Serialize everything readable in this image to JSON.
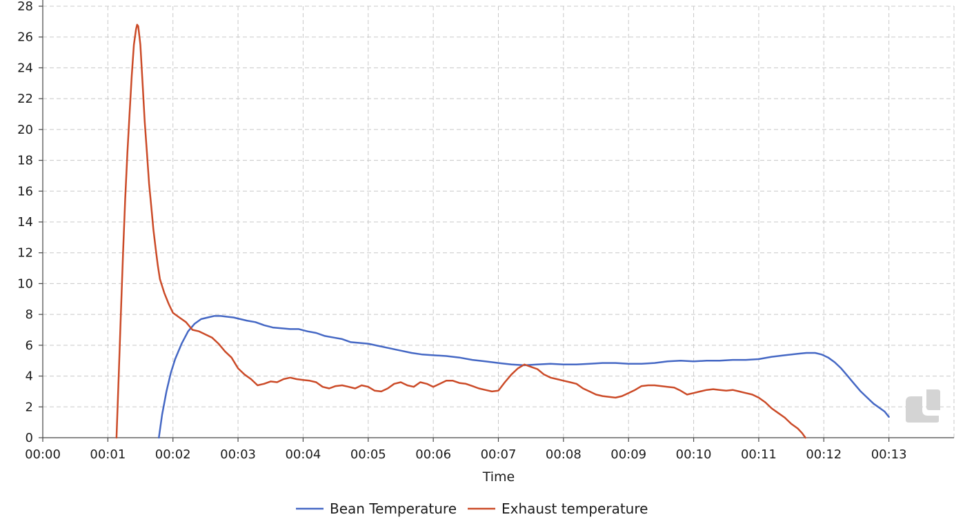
{
  "chart_data": {
    "type": "line",
    "title": "",
    "xlabel": "Time",
    "ylabel": "",
    "xlim": [
      0,
      840
    ],
    "ylim": [
      0,
      28
    ],
    "grid": true,
    "legend_position": "bottom-center",
    "x_ticks": [
      {
        "v": 0,
        "label": "00:00"
      },
      {
        "v": 60,
        "label": "00:01"
      },
      {
        "v": 120,
        "label": "00:02"
      },
      {
        "v": 180,
        "label": "00:03"
      },
      {
        "v": 240,
        "label": "00:04"
      },
      {
        "v": 300,
        "label": "00:05"
      },
      {
        "v": 360,
        "label": "00:06"
      },
      {
        "v": 420,
        "label": "00:07"
      },
      {
        "v": 480,
        "label": "00:08"
      },
      {
        "v": 540,
        "label": "00:09"
      },
      {
        "v": 600,
        "label": "00:10"
      },
      {
        "v": 660,
        "label": "00:11"
      },
      {
        "v": 720,
        "label": "00:12"
      },
      {
        "v": 780,
        "label": "00:13"
      }
    ],
    "y_ticks": [
      0,
      2,
      4,
      6,
      8,
      10,
      12,
      14,
      16,
      18,
      20,
      22,
      24,
      26,
      28
    ],
    "series": [
      {
        "name": "Bean Temperature",
        "color": "#4467c4",
        "points": [
          [
            107,
            0
          ],
          [
            110,
            1.5
          ],
          [
            114,
            3
          ],
          [
            118,
            4.2
          ],
          [
            122,
            5.1
          ],
          [
            128,
            6.1
          ],
          [
            134,
            6.9
          ],
          [
            140,
            7.4
          ],
          [
            146,
            7.7
          ],
          [
            152,
            7.8
          ],
          [
            158,
            7.9
          ],
          [
            164,
            7.9
          ],
          [
            170,
            7.85
          ],
          [
            176,
            7.8
          ],
          [
            182,
            7.7
          ],
          [
            188,
            7.6
          ],
          [
            196,
            7.5
          ],
          [
            204,
            7.3
          ],
          [
            212,
            7.15
          ],
          [
            220,
            7.1
          ],
          [
            228,
            7.05
          ],
          [
            236,
            7.05
          ],
          [
            244,
            6.9
          ],
          [
            252,
            6.8
          ],
          [
            260,
            6.6
          ],
          [
            268,
            6.5
          ],
          [
            276,
            6.4
          ],
          [
            284,
            6.2
          ],
          [
            292,
            6.15
          ],
          [
            300,
            6.1
          ],
          [
            310,
            5.95
          ],
          [
            320,
            5.8
          ],
          [
            330,
            5.65
          ],
          [
            340,
            5.5
          ],
          [
            350,
            5.4
          ],
          [
            360,
            5.35
          ],
          [
            372,
            5.3
          ],
          [
            384,
            5.2
          ],
          [
            396,
            5.05
          ],
          [
            408,
            4.95
          ],
          [
            420,
            4.85
          ],
          [
            432,
            4.75
          ],
          [
            444,
            4.7
          ],
          [
            456,
            4.75
          ],
          [
            468,
            4.8
          ],
          [
            480,
            4.75
          ],
          [
            492,
            4.75
          ],
          [
            504,
            4.8
          ],
          [
            516,
            4.85
          ],
          [
            528,
            4.85
          ],
          [
            540,
            4.8
          ],
          [
            552,
            4.8
          ],
          [
            564,
            4.85
          ],
          [
            576,
            4.95
          ],
          [
            588,
            5.0
          ],
          [
            600,
            4.95
          ],
          [
            612,
            5.0
          ],
          [
            624,
            5.0
          ],
          [
            636,
            5.05
          ],
          [
            648,
            5.05
          ],
          [
            660,
            5.1
          ],
          [
            672,
            5.25
          ],
          [
            684,
            5.35
          ],
          [
            696,
            5.45
          ],
          [
            704,
            5.5
          ],
          [
            712,
            5.5
          ],
          [
            718,
            5.4
          ],
          [
            724,
            5.2
          ],
          [
            730,
            4.9
          ],
          [
            736,
            4.5
          ],
          [
            742,
            4.0
          ],
          [
            748,
            3.5
          ],
          [
            754,
            3.0
          ],
          [
            760,
            2.6
          ],
          [
            766,
            2.2
          ],
          [
            772,
            1.9
          ],
          [
            776,
            1.7
          ],
          [
            780,
            1.35
          ]
        ]
      },
      {
        "name": "Exhaust temperature",
        "color": "#cb4a27",
        "points": [
          [
            68,
            0
          ],
          [
            70,
            4
          ],
          [
            72,
            8
          ],
          [
            74,
            12
          ],
          [
            76,
            15.5
          ],
          [
            78,
            18.5
          ],
          [
            80,
            21
          ],
          [
            82,
            23.5
          ],
          [
            84,
            25.5
          ],
          [
            86,
            26.5
          ],
          [
            87,
            26.8
          ],
          [
            88,
            26.7
          ],
          [
            90,
            25.5
          ],
          [
            92,
            23
          ],
          [
            94,
            20.5
          ],
          [
            96,
            18.5
          ],
          [
            98,
            16.5
          ],
          [
            100,
            15
          ],
          [
            102,
            13.5
          ],
          [
            104,
            12.3
          ],
          [
            106,
            11.2
          ],
          [
            108,
            10.3
          ],
          [
            112,
            9.4
          ],
          [
            116,
            8.7
          ],
          [
            120,
            8.1
          ],
          [
            126,
            7.8
          ],
          [
            132,
            7.5
          ],
          [
            138,
            7.0
          ],
          [
            144,
            6.9
          ],
          [
            150,
            6.7
          ],
          [
            156,
            6.5
          ],
          [
            162,
            6.1
          ],
          [
            168,
            5.6
          ],
          [
            174,
            5.2
          ],
          [
            180,
            4.5
          ],
          [
            186,
            4.1
          ],
          [
            192,
            3.8
          ],
          [
            198,
            3.4
          ],
          [
            204,
            3.5
          ],
          [
            210,
            3.65
          ],
          [
            216,
            3.6
          ],
          [
            222,
            3.8
          ],
          [
            228,
            3.9
          ],
          [
            234,
            3.8
          ],
          [
            240,
            3.75
          ],
          [
            246,
            3.7
          ],
          [
            252,
            3.6
          ],
          [
            258,
            3.3
          ],
          [
            264,
            3.2
          ],
          [
            270,
            3.35
          ],
          [
            276,
            3.4
          ],
          [
            282,
            3.3
          ],
          [
            288,
            3.2
          ],
          [
            294,
            3.4
          ],
          [
            300,
            3.3
          ],
          [
            306,
            3.05
          ],
          [
            312,
            3.0
          ],
          [
            318,
            3.2
          ],
          [
            324,
            3.5
          ],
          [
            330,
            3.6
          ],
          [
            336,
            3.4
          ],
          [
            342,
            3.3
          ],
          [
            348,
            3.6
          ],
          [
            354,
            3.5
          ],
          [
            360,
            3.3
          ],
          [
            366,
            3.5
          ],
          [
            372,
            3.7
          ],
          [
            378,
            3.7
          ],
          [
            384,
            3.55
          ],
          [
            390,
            3.5
          ],
          [
            396,
            3.35
          ],
          [
            402,
            3.2
          ],
          [
            408,
            3.1
          ],
          [
            414,
            3.0
          ],
          [
            420,
            3.05
          ],
          [
            426,
            3.6
          ],
          [
            432,
            4.1
          ],
          [
            438,
            4.5
          ],
          [
            444,
            4.75
          ],
          [
            450,
            4.6
          ],
          [
            456,
            4.45
          ],
          [
            462,
            4.1
          ],
          [
            468,
            3.9
          ],
          [
            474,
            3.8
          ],
          [
            480,
            3.7
          ],
          [
            486,
            3.6
          ],
          [
            492,
            3.5
          ],
          [
            498,
            3.2
          ],
          [
            504,
            3.0
          ],
          [
            510,
            2.8
          ],
          [
            516,
            2.7
          ],
          [
            522,
            2.65
          ],
          [
            528,
            2.6
          ],
          [
            534,
            2.7
          ],
          [
            540,
            2.9
          ],
          [
            546,
            3.1
          ],
          [
            552,
            3.35
          ],
          [
            558,
            3.4
          ],
          [
            564,
            3.4
          ],
          [
            570,
            3.35
          ],
          [
            576,
            3.3
          ],
          [
            582,
            3.25
          ],
          [
            588,
            3.05
          ],
          [
            594,
            2.8
          ],
          [
            600,
            2.9
          ],
          [
            606,
            3.0
          ],
          [
            612,
            3.1
          ],
          [
            618,
            3.15
          ],
          [
            624,
            3.1
          ],
          [
            630,
            3.05
          ],
          [
            636,
            3.1
          ],
          [
            642,
            3.0
          ],
          [
            648,
            2.9
          ],
          [
            654,
            2.8
          ],
          [
            660,
            2.6
          ],
          [
            666,
            2.3
          ],
          [
            672,
            1.9
          ],
          [
            678,
            1.6
          ],
          [
            684,
            1.3
          ],
          [
            690,
            0.9
          ],
          [
            696,
            0.6
          ],
          [
            700,
            0.3
          ],
          [
            703,
            0
          ]
        ]
      }
    ]
  }
}
